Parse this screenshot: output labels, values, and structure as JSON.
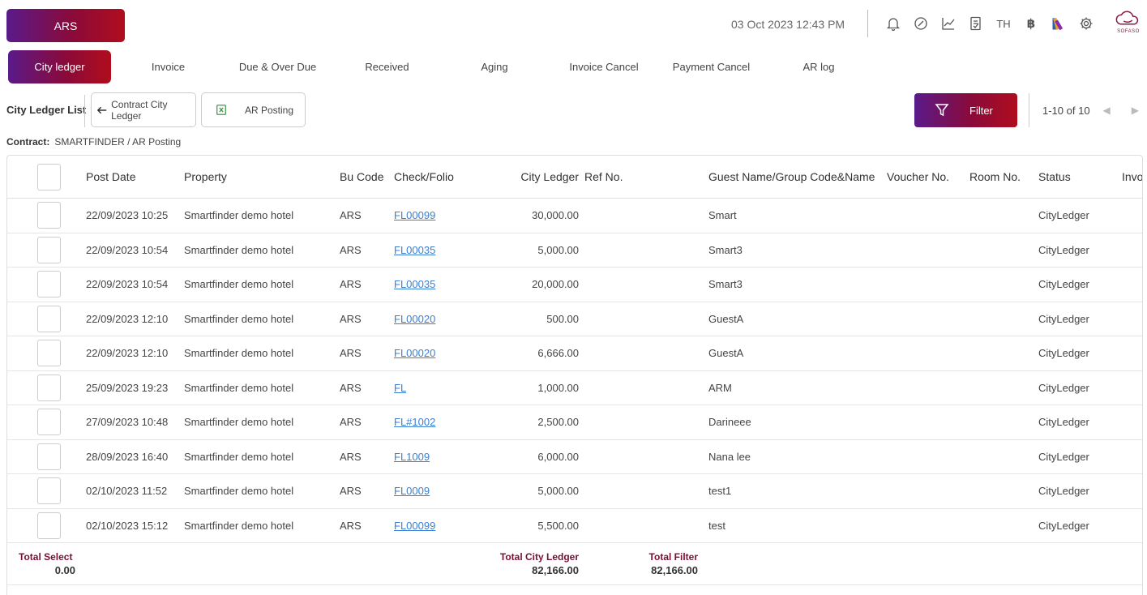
{
  "header": {
    "brand_label": "ARS",
    "datetime": "03 Oct 2023  12:43 PM",
    "lang": "TH",
    "currency_symbol": "฿",
    "logo_text": "SOFASO"
  },
  "tabs": [
    {
      "label": "City ledger",
      "active": true
    },
    {
      "label": "Invoice"
    },
    {
      "label": "Due & Over Due"
    },
    {
      "label": "Received"
    },
    {
      "label": "Aging"
    },
    {
      "label": "Invoice Cancel"
    },
    {
      "label": "Payment Cancel"
    },
    {
      "label": "AR log"
    }
  ],
  "toolbar": {
    "list_title": "City Ledger List",
    "contract_btn": "Contract City Ledger",
    "posting_btn": "AR Posting",
    "filter_btn": "Filter",
    "pager_text": "1-10 of 10"
  },
  "contract": {
    "label": "Contract:",
    "value": "SMARTFINDER / AR Posting"
  },
  "table": {
    "columns": {
      "post_date": "Post Date",
      "property": "Property",
      "bu_code": "Bu Code",
      "check_folio": "Check/Folio",
      "city_ledger": "City Ledger",
      "ref_no": "Ref No.",
      "guest": "Guest Name/Group Code&Name",
      "voucher": "Voucher No.",
      "room": "Room No.",
      "status": "Status",
      "invoice": "Invo"
    },
    "rows": [
      {
        "date": "22/09/2023 10:25",
        "property": "Smartfinder demo hotel",
        "bu": "ARS",
        "folio": "FL00099",
        "amount": "30,000.00",
        "guest": "Smart",
        "status": "CityLedger"
      },
      {
        "date": "22/09/2023 10:54",
        "property": "Smartfinder demo hotel",
        "bu": "ARS",
        "folio": "FL00035",
        "amount": "5,000.00",
        "guest": "Smart3",
        "status": "CityLedger"
      },
      {
        "date": "22/09/2023 10:54",
        "property": "Smartfinder demo hotel",
        "bu": "ARS",
        "folio": "FL00035",
        "amount": "20,000.00",
        "guest": "Smart3",
        "status": "CityLedger"
      },
      {
        "date": "22/09/2023 12:10",
        "property": "Smartfinder demo hotel",
        "bu": "ARS",
        "folio": "FL00020",
        "amount": "500.00",
        "guest": "GuestA",
        "status": "CityLedger"
      },
      {
        "date": "22/09/2023 12:10",
        "property": "Smartfinder demo hotel",
        "bu": "ARS",
        "folio": "FL00020",
        "amount": "6,666.00",
        "guest": "GuestA",
        "status": "CityLedger"
      },
      {
        "date": "25/09/2023 19:23",
        "property": "Smartfinder demo hotel",
        "bu": "ARS",
        "folio": "FL",
        "amount": "1,000.00",
        "guest": "ARM",
        "status": "CityLedger"
      },
      {
        "date": "27/09/2023 10:48",
        "property": "Smartfinder demo hotel",
        "bu": "ARS",
        "folio": "FL#1002",
        "amount": "2,500.00",
        "guest": "Darineee",
        "status": "CityLedger"
      },
      {
        "date": "28/09/2023 16:40",
        "property": "Smartfinder demo hotel",
        "bu": "ARS",
        "folio": "FL1009",
        "amount": "6,000.00",
        "guest": "Nana lee",
        "status": "CityLedger"
      },
      {
        "date": "02/10/2023 11:52",
        "property": "Smartfinder demo hotel",
        "bu": "ARS",
        "folio": "FL0009",
        "amount": "5,000.00",
        "guest": "test1",
        "status": "CityLedger"
      },
      {
        "date": "02/10/2023 15:12",
        "property": "Smartfinder demo hotel",
        "bu": "ARS",
        "folio": "FL00099",
        "amount": "5,500.00",
        "guest": "test",
        "status": "CityLedger"
      }
    ]
  },
  "totals": {
    "select_label": "Total Select",
    "select_value": "0.00",
    "ledger_label": "Total City Ledger",
    "ledger_value": "82,166.00",
    "filter_label": "Total Filter",
    "filter_value": "82,166.00"
  }
}
